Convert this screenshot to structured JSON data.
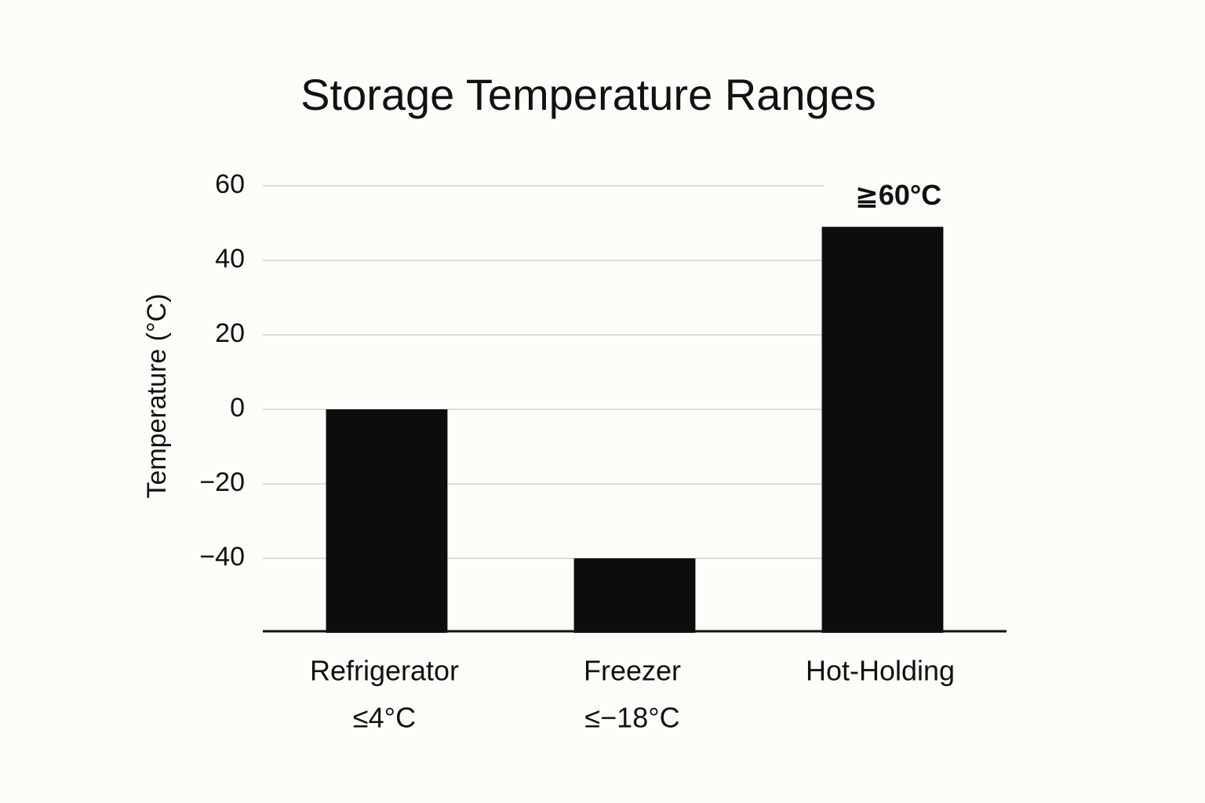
{
  "chart_data": {
    "type": "bar",
    "title": "Storage Temperature Ranges",
    "y_label": "Temperature (°C)",
    "categories": [
      "Refrigerator",
      "Freezer",
      "Hot-Holding"
    ],
    "sublabels": [
      "≤4°C",
      "≤−18°C",
      null
    ],
    "values": [
      0,
      -40,
      49
    ],
    "annotations": [
      {
        "text": "≧60°C",
        "category": "Hot-Holding"
      }
    ],
    "color": "#0d0d0d",
    "ylim": [
      -60,
      60
    ],
    "yticks": [
      {
        "value": -40,
        "label": "−40"
      },
      {
        "value": -20,
        "label": "−20"
      },
      0,
      20,
      40,
      60
    ],
    "grid": true
  }
}
